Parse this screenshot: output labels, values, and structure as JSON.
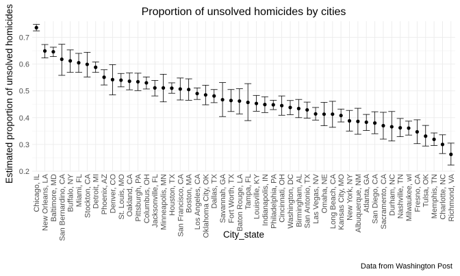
{
  "chart_data": {
    "type": "scatter",
    "title": "Proportion of unsolved homicides by cities",
    "xlabel": "City_state",
    "ylabel": "Estimated proportion of unsolved homicides",
    "caption": "Data from Washington Post",
    "ylim": [
      0.2,
      0.76
    ],
    "yticks": [
      "0.2",
      "0.3",
      "0.4",
      "0.5",
      "0.6",
      "0.7"
    ],
    "grid": true,
    "legend": "none",
    "series": [
      {
        "name": "",
        "marker": "point with error bars",
        "color": "#000000"
      }
    ],
    "categories": [
      "Chicago, IL",
      "New Orleans, LA",
      "Baltimore, MD",
      "San Bernardino, CA",
      "Buffalo, NY",
      "Miami, FL",
      "Stockton, CA",
      "Detroit, MI",
      "Phoenix, AZ",
      "Denver, CO",
      "St. Louis, MO",
      "Oakland, CA",
      "Pittsburgh, PA",
      "Columbus, OH",
      "Jacksonville, FL",
      "Minneapolis, MN",
      "Houston, TX",
      "San Francisco, CA",
      "Boston, MA",
      "Los Angeles, CA",
      "Oklahoma City, OK",
      "Dallas, TX",
      "Savannah, GA",
      "Fort Worth, TX",
      "Baton Rouge, LA",
      "Tampa, FL",
      "Louisville, KY",
      "Indianapolis, IN",
      "Philadelphia, PA",
      "Cincinnati, OH",
      "Washington, DC",
      "Birmingham, AL",
      "San Antonio, TX",
      "Las Vegas, NV",
      "Omaha, NE",
      "Long Beach, CA",
      "Kansas City, MO",
      "New York, NY",
      "Albuquerque, NM",
      "Atlanta, GA",
      "San Diego, CA",
      "Sacramento, CA",
      "Durham, NC",
      "Nashville, TN",
      "Milwaukee, wI",
      "Fresno, CA",
      "Tulsa, OK",
      "Memphis, TN",
      "Charlotte, NC",
      "Richmond, VA"
    ],
    "estimate": [
      0.736,
      0.649,
      0.646,
      0.618,
      0.612,
      0.605,
      0.599,
      0.588,
      0.551,
      0.542,
      0.54,
      0.536,
      0.534,
      0.53,
      0.511,
      0.511,
      0.51,
      0.507,
      0.505,
      0.49,
      0.485,
      0.481,
      0.467,
      0.464,
      0.462,
      0.457,
      0.453,
      0.449,
      0.448,
      0.445,
      0.438,
      0.434,
      0.429,
      0.414,
      0.413,
      0.413,
      0.408,
      0.388,
      0.386,
      0.383,
      0.38,
      0.37,
      0.366,
      0.362,
      0.361,
      0.347,
      0.331,
      0.319,
      0.3,
      0.263
    ],
    "conf_low": [
      0.724,
      0.623,
      0.628,
      0.558,
      0.569,
      0.569,
      0.552,
      0.569,
      0.522,
      0.485,
      0.515,
      0.504,
      0.501,
      0.507,
      0.481,
      0.459,
      0.491,
      0.466,
      0.465,
      0.468,
      0.448,
      0.456,
      0.404,
      0.423,
      0.414,
      0.389,
      0.424,
      0.419,
      0.43,
      0.409,
      0.411,
      0.4,
      0.398,
      0.391,
      0.37,
      0.364,
      0.384,
      0.35,
      0.338,
      0.352,
      0.34,
      0.32,
      0.313,
      0.329,
      0.335,
      0.303,
      0.294,
      0.296,
      0.266,
      0.223
    ],
    "conf_high": [
      0.748,
      0.673,
      0.663,
      0.674,
      0.653,
      0.64,
      0.644,
      0.608,
      0.579,
      0.598,
      0.565,
      0.567,
      0.566,
      0.552,
      0.539,
      0.562,
      0.53,
      0.548,
      0.545,
      0.511,
      0.521,
      0.505,
      0.531,
      0.505,
      0.508,
      0.527,
      0.483,
      0.478,
      0.465,
      0.481,
      0.464,
      0.468,
      0.458,
      0.438,
      0.457,
      0.461,
      0.432,
      0.427,
      0.435,
      0.412,
      0.422,
      0.42,
      0.423,
      0.397,
      0.387,
      0.392,
      0.371,
      0.343,
      0.336,
      0.305
    ]
  }
}
